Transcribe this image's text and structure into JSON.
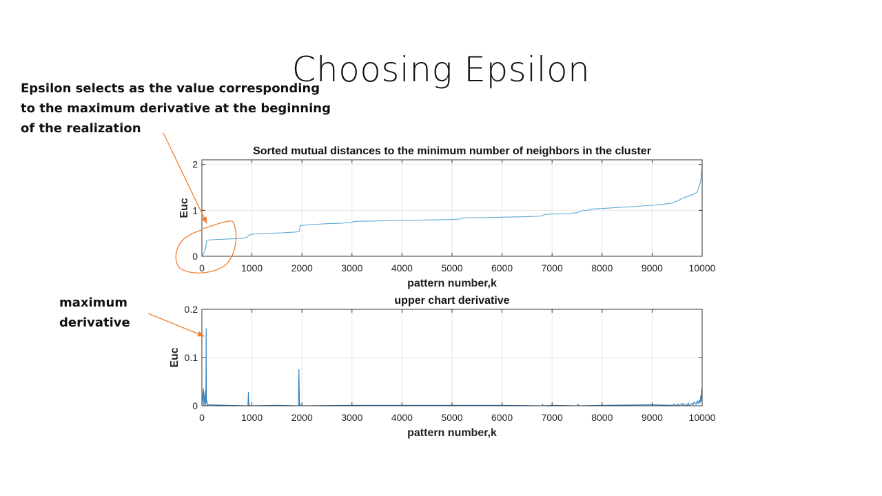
{
  "slide": {
    "title": "Choosing Epsilon",
    "annotation_epsilon": [
      "Epsilon selects as the value corresponding",
      "to the maximum derivative at the beginning",
      "of the realization"
    ],
    "annotation_max": [
      "maximum",
      "derivative"
    ]
  },
  "colors": {
    "line": "#5ba7d6",
    "derivative": "#2b7fc0",
    "annotation": "#f07d2d",
    "grid": "#e6e6e6",
    "axes": "#333333"
  },
  "chart_data": [
    {
      "type": "line",
      "title": "Sorted mutual distances to the minimum number of neighbors in the cluster",
      "xlabel": "pattern number,k",
      "ylabel": "Euc",
      "xlim": [
        0,
        10000
      ],
      "ylim": [
        0,
        2.1
      ],
      "xticks": [
        0,
        1000,
        2000,
        3000,
        4000,
        5000,
        6000,
        7000,
        8000,
        9000,
        10000
      ],
      "yticks": [
        0,
        1,
        2
      ],
      "grid": true,
      "series": [
        {
          "x": [
            0,
            30,
            60,
            80,
            95,
            200,
            400,
            600,
            800,
            900,
            940,
            1000,
            1300,
            1600,
            1900,
            1950,
            1960,
            1970,
            2200,
            2500,
            2800,
            3000,
            3050,
            3500,
            4000,
            4500,
            5000,
            5150,
            5200,
            5300,
            5600,
            6000,
            6400,
            6700,
            6800,
            6850,
            7000,
            7300,
            7500,
            7600,
            7700,
            7800,
            8000,
            8300,
            8600,
            9000,
            9200,
            9400,
            9500,
            9600,
            9700,
            9800,
            9850,
            9900,
            9950,
            9980,
            10000
          ],
          "values": [
            0.01,
            0.05,
            0.12,
            0.2,
            0.35,
            0.36,
            0.37,
            0.38,
            0.39,
            0.41,
            0.46,
            0.48,
            0.5,
            0.51,
            0.53,
            0.55,
            0.64,
            0.67,
            0.69,
            0.71,
            0.72,
            0.74,
            0.76,
            0.77,
            0.78,
            0.79,
            0.8,
            0.81,
            0.83,
            0.84,
            0.84,
            0.85,
            0.86,
            0.87,
            0.88,
            0.91,
            0.92,
            0.93,
            0.95,
            0.99,
            1.0,
            1.03,
            1.04,
            1.06,
            1.08,
            1.11,
            1.13,
            1.16,
            1.2,
            1.26,
            1.3,
            1.34,
            1.36,
            1.4,
            1.55,
            1.7,
            2.0
          ]
        }
      ]
    },
    {
      "type": "line",
      "title": "upper chart derivative",
      "xlabel": "pattern number,k",
      "ylabel": "Euc",
      "xlim": [
        0,
        10000
      ],
      "ylim": [
        0,
        0.2
      ],
      "xticks": [
        0,
        1000,
        2000,
        3000,
        4000,
        5000,
        6000,
        7000,
        8000,
        9000,
        10000
      ],
      "yticks": [
        0,
        0.1,
        0.2
      ],
      "grid": true,
      "series": [
        {
          "x": [
            0,
            30,
            40,
            50,
            60,
            70,
            80,
            85,
            90,
            95,
            100,
            110,
            120,
            500,
            920,
            930,
            940,
            950,
            960,
            1500,
            1930,
            1940,
            1950,
            1960,
            1970,
            3000,
            5000,
            6000,
            6800,
            6810,
            6820,
            7000,
            7500,
            7520,
            7540,
            8000,
            9000,
            9400,
            9450,
            9500,
            9520,
            9540,
            9600,
            9620,
            9640,
            9700,
            9720,
            9740,
            9800,
            9820,
            9840,
            9880,
            9900,
            9920,
            9940,
            9960,
            9970,
            9980,
            9990,
            10000
          ],
          "values": [
            0.0,
            0.035,
            0.0,
            0.01,
            0.03,
            0.0,
            0.02,
            0.16,
            0.01,
            0.005,
            0.01,
            0.0,
            0.002,
            0.001,
            0.0,
            0.028,
            0.0,
            0.002,
            0.0,
            0.001,
            0.0,
            0.075,
            0.0,
            0.004,
            0.0,
            0.001,
            0.001,
            0.001,
            0.0,
            0.003,
            0.0,
            0.001,
            0.0,
            0.003,
            0.0,
            0.001,
            0.002,
            0.001,
            0.003,
            0.0,
            0.004,
            0.0,
            0.005,
            0.001,
            0.004,
            0.0,
            0.006,
            0.001,
            0.005,
            0.002,
            0.008,
            0.003,
            0.01,
            0.004,
            0.012,
            0.006,
            0.02,
            0.01,
            0.035,
            0.02
          ]
        }
      ]
    }
  ]
}
